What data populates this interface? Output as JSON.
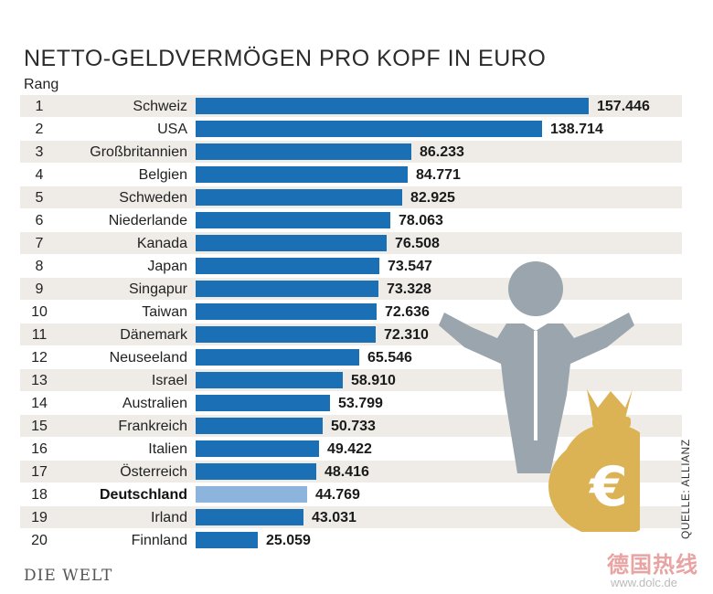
{
  "header": {
    "title": "NETTO-GELDVERMÖGEN PRO KOPF IN EURO",
    "rank_label": "Rang"
  },
  "chart_data": {
    "type": "bar",
    "orientation": "horizontal",
    "title": "NETTO-GELDVERMÖGEN PRO KOPF IN EURO",
    "xlabel": "",
    "ylabel": "Rang",
    "xlim": [
      0,
      157446
    ],
    "highlight": "Deutschland",
    "rows": [
      {
        "rank": "1",
        "country": "Schweiz",
        "value": 157446,
        "label": "157.446"
      },
      {
        "rank": "2",
        "country": "USA",
        "value": 138714,
        "label": "138.714"
      },
      {
        "rank": "3",
        "country": "Großbritannien",
        "value": 86233,
        "label": "86.233"
      },
      {
        "rank": "4",
        "country": "Belgien",
        "value": 84771,
        "label": "84.771"
      },
      {
        "rank": "5",
        "country": "Schweden",
        "value": 82925,
        "label": "82.925"
      },
      {
        "rank": "6",
        "country": "Niederlande",
        "value": 78063,
        "label": "78.063"
      },
      {
        "rank": "7",
        "country": "Kanada",
        "value": 76508,
        "label": "76.508"
      },
      {
        "rank": "8",
        "country": "Japan",
        "value": 73547,
        "label": "73.547"
      },
      {
        "rank": "9",
        "country": "Singapur",
        "value": 73328,
        "label": "73.328"
      },
      {
        "rank": "10",
        "country": "Taiwan",
        "value": 72636,
        "label": "72.636"
      },
      {
        "rank": "11",
        "country": "Dänemark",
        "value": 72310,
        "label": "72.310"
      },
      {
        "rank": "12",
        "country": "Neuseeland",
        "value": 65546,
        "label": "65.546"
      },
      {
        "rank": "13",
        "country": "Israel",
        "value": 58910,
        "label": "58.910"
      },
      {
        "rank": "14",
        "country": "Australien",
        "value": 53799,
        "label": "53.799"
      },
      {
        "rank": "15",
        "country": "Frankreich",
        "value": 50733,
        "label": "50.733"
      },
      {
        "rank": "16",
        "country": "Italien",
        "value": 49422,
        "label": "49.422"
      },
      {
        "rank": "17",
        "country": "Österreich",
        "value": 48416,
        "label": "48.416"
      },
      {
        "rank": "18",
        "country": "Deutschland",
        "value": 44769,
        "label": "44.769"
      },
      {
        "rank": "19",
        "country": "Irland",
        "value": 43031,
        "label": "43.031"
      },
      {
        "rank": "20",
        "country": "Finnland",
        "value": 25059,
        "label": "25.059"
      }
    ]
  },
  "colors": {
    "bar": "#1a6fb5",
    "bar_highlight": "#8db4dc",
    "row_shade": "#efece8",
    "figure": "#9aa5ae",
    "moneybag": "#dcb354"
  },
  "icons": {
    "person": "person-shrug-icon",
    "moneybag": "euro-moneybag-icon",
    "euro_symbol": "€"
  },
  "footer": {
    "source": "QUELLE: ALLIANZ",
    "logo": "DIE WELT",
    "watermark_cn": "德国热线",
    "watermark_url": "www.dolc.de"
  }
}
